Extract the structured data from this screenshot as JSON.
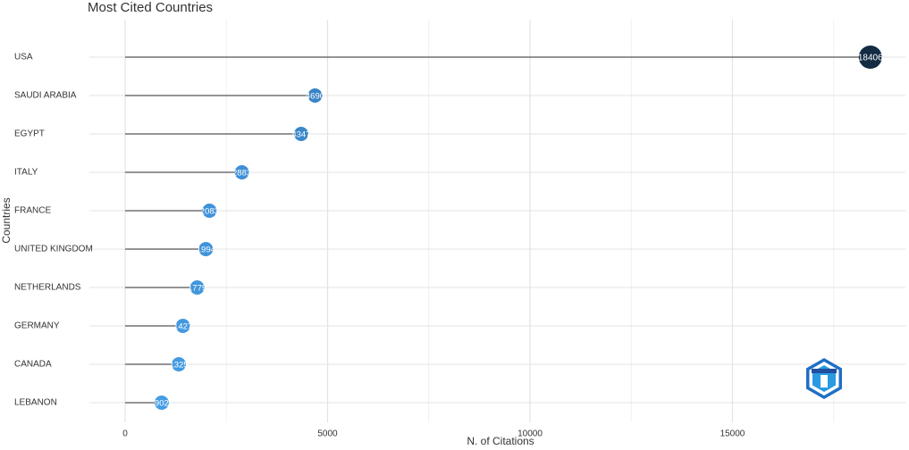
{
  "chart_data": {
    "type": "lollipop",
    "title": "Most Cited Countries",
    "x_label": "N. of Citations",
    "y_label": "Countries",
    "categories": [
      "USA",
      "SAUDI ARABIA",
      "EGYPT",
      "ITALY",
      "FRANCE",
      "UNITED KINGDOM",
      "NETHERLANDS",
      "GERMANY",
      "CANADA",
      "LEBANON"
    ],
    "values": [
      18406,
      4690,
      4347,
      2883,
      2083,
      1994,
      1779,
      1427,
      1325,
      902
    ],
    "colors": [
      "#132b43",
      "#3a84c6",
      "#3b87ca",
      "#3f8fd6",
      "#4193da",
      "#4194da",
      "#4296dd",
      "#4399df",
      "#439ae0",
      "#469de4"
    ],
    "xlim": [
      -883,
      19272
    ],
    "xticks": [
      0,
      5000,
      10000,
      15000
    ],
    "xminorticks": [
      2500,
      7500,
      12500,
      17500
    ],
    "grid": true
  }
}
